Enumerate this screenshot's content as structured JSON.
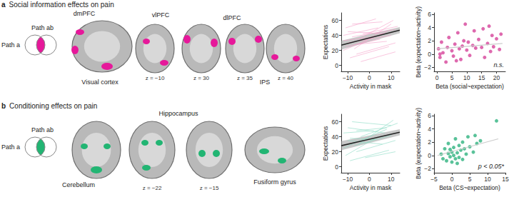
{
  "figure": {
    "panels": [
      {
        "letter": "a",
        "title": "Social information effects on pain",
        "path_labels": [
          "Path a",
          "Path ab"
        ],
        "color": "#e6189a",
        "region_labels": [
          "dmPFC",
          "vlPFC",
          "dlPFC",
          "Visual cortex",
          "IPS"
        ],
        "slice_labels": [
          "z = −10",
          "z = 30",
          "z = 35",
          "z = 40"
        ]
      },
      {
        "letter": "b",
        "title": "Conditioning effects on pain",
        "path_labels": [
          "Path a",
          "Path ab"
        ],
        "color": "#22b573",
        "region_labels": [
          "Hippocampus",
          "Cerebellum",
          "Fusiform gyrus"
        ],
        "slice_labels": [
          "z = −22",
          "z = −15"
        ]
      }
    ]
  },
  "chart_data": [
    {
      "type": "line",
      "x_label": "Activity in mask",
      "y_label": "Expectations",
      "xlim": [
        -13,
        14
      ],
      "ylim": [
        -8,
        70
      ],
      "xticks": [
        {
          "value": -10,
          "label": "−10"
        },
        0,
        10
      ],
      "yticks": [
        0,
        20,
        40,
        60
      ],
      "grid": false,
      "color": "#f5a3cb",
      "lines": [
        [
          [
            -12,
            20
          ],
          [
            8,
            45
          ]
        ],
        [
          [
            -10,
            30
          ],
          [
            10,
            40
          ]
        ],
        [
          [
            -8,
            55
          ],
          [
            6,
            58
          ]
        ],
        [
          [
            -11,
            25
          ],
          [
            5,
            35
          ]
        ],
        [
          [
            -6,
            15
          ],
          [
            12,
            30
          ]
        ],
        [
          [
            -12,
            40
          ],
          [
            4,
            50
          ]
        ],
        [
          [
            -9,
            10
          ],
          [
            9,
            25
          ]
        ],
        [
          [
            -5,
            35
          ],
          [
            11,
            60
          ]
        ],
        [
          [
            -10,
            45
          ],
          [
            7,
            42
          ]
        ],
        [
          [
            -7,
            22
          ],
          [
            10,
            55
          ]
        ],
        [
          [
            -12,
            33
          ],
          [
            2,
            38
          ]
        ],
        [
          [
            -4,
            5
          ],
          [
            12,
            18
          ]
        ],
        [
          [
            -8,
            38
          ],
          [
            12,
            48
          ]
        ],
        [
          [
            -11,
            50
          ],
          [
            3,
            62
          ]
        ],
        [
          [
            -6,
            28
          ],
          [
            8,
            32
          ]
        ],
        [
          [
            -3,
            42
          ],
          [
            13,
            52
          ]
        ]
      ],
      "fit": {
        "color": "#222222",
        "band_color": "#9a9a9a",
        "x": [
          -13,
          14
        ],
        "y": [
          27,
          47
        ],
        "ci_lower": [
          21,
          43
        ],
        "ci_upper": [
          33,
          51
        ]
      }
    },
    {
      "type": "scatter",
      "x_label": "Beta (social~expectation)",
      "y_label": "Beta (expectation~activity)",
      "xlim": [
        -1,
        23
      ],
      "ylim": [
        -2.6,
        6.2
      ],
      "xticks": [
        0,
        5,
        10,
        15,
        20
      ],
      "yticks": [
        {
          "value": -2,
          "label": "−2"
        },
        0,
        2,
        4,
        6
      ],
      "grid": false,
      "color": "#d6449a",
      "points": [
        [
          0.5,
          0.8
        ],
        [
          1,
          -0.5
        ],
        [
          1.5,
          1.8
        ],
        [
          2,
          0.2
        ],
        [
          3,
          -1.2
        ],
        [
          3.5,
          1
        ],
        [
          4,
          2.5
        ],
        [
          5,
          0.5
        ],
        [
          5.5,
          -0.3
        ],
        [
          6,
          1.5
        ],
        [
          7,
          3.2
        ],
        [
          7.5,
          0.8
        ],
        [
          8,
          -0.8
        ],
        [
          8.5,
          1.2
        ],
        [
          9,
          2
        ],
        [
          9.5,
          4.5
        ],
        [
          10,
          0.6
        ],
        [
          10.5,
          1.8
        ],
        [
          11,
          -0.2
        ],
        [
          12,
          1.3
        ],
        [
          12.5,
          3.5
        ],
        [
          13,
          0.9
        ],
        [
          14,
          2.2
        ],
        [
          15,
          1
        ],
        [
          15.5,
          3.8
        ],
        [
          16,
          -0.5
        ],
        [
          17,
          1.6
        ],
        [
          17.5,
          4.2
        ],
        [
          18,
          0.4
        ],
        [
          18.5,
          2.8
        ],
        [
          19,
          1.1
        ],
        [
          20,
          2.3
        ],
        [
          21,
          0.7
        ],
        [
          21.5,
          3
        ],
        [
          1,
          0
        ],
        [
          6.5,
          -1
        ]
      ],
      "fit": {
        "color": "#cccccc",
        "x": [
          0,
          22
        ],
        "y": [
          0.8,
          1.6
        ]
      },
      "annotation": "n.s."
    },
    {
      "type": "line",
      "x_label": "Activity in mask",
      "y_label": "Expectations",
      "xlim": [
        -13,
        14
      ],
      "ylim": [
        -8,
        70
      ],
      "xticks": [
        {
          "value": -10,
          "label": "−10"
        },
        0,
        10
      ],
      "yticks": [
        0,
        20,
        40,
        60
      ],
      "grid": false,
      "color": "#8fdcc6",
      "lines": [
        [
          [
            -12,
            25
          ],
          [
            8,
            50
          ]
        ],
        [
          [
            -10,
            35
          ],
          [
            6,
            30
          ]
        ],
        [
          [
            -8,
            60
          ],
          [
            10,
            55
          ]
        ],
        [
          [
            -11,
            15
          ],
          [
            4,
            40
          ]
        ],
        [
          [
            -6,
            20
          ],
          [
            12,
            35
          ]
        ],
        [
          [
            -12,
            45
          ],
          [
            2,
            48
          ]
        ],
        [
          [
            -9,
            8
          ],
          [
            9,
            22
          ]
        ],
        [
          [
            -5,
            30
          ],
          [
            11,
            62
          ]
        ],
        [
          [
            -10,
            52
          ],
          [
            7,
            45
          ]
        ],
        [
          [
            -7,
            28
          ],
          [
            10,
            42
          ]
        ],
        [
          [
            -4,
            40
          ],
          [
            13,
            58
          ]
        ],
        [
          [
            -2,
            12
          ],
          [
            12,
            20
          ]
        ],
        [
          [
            -9,
            38
          ],
          [
            3,
            36
          ]
        ],
        [
          [
            -6,
            48
          ],
          [
            8,
            52
          ]
        ]
      ],
      "fit": {
        "color": "#222222",
        "band_color": "#9a9a9a",
        "x": [
          -13,
          14
        ],
        "y": [
          28,
          46
        ],
        "ci_lower": [
          22,
          42
        ],
        "ci_upper": [
          34,
          50
        ]
      }
    },
    {
      "type": "scatter",
      "x_label": "Beta (CS~expectation)",
      "y_label": "Beta (expectation~activity)",
      "xlim": [
        -5,
        15
      ],
      "ylim": [
        -2.6,
        6.2
      ],
      "xticks": [
        {
          "value": -5,
          "label": "−5"
        },
        0,
        5,
        10,
        15
      ],
      "yticks": [
        {
          "value": -2,
          "label": "−2"
        },
        0,
        2,
        4,
        6
      ],
      "grid": false,
      "color": "#2fb37f",
      "points": [
        [
          -3,
          0.2
        ],
        [
          -2.5,
          -0.5
        ],
        [
          -2,
          1
        ],
        [
          -1.5,
          -0.8
        ],
        [
          -1,
          0.3
        ],
        [
          -1,
          1.8
        ],
        [
          -0.5,
          -0.2
        ],
        [
          0,
          0.5
        ],
        [
          0,
          -1
        ],
        [
          0.5,
          1.2
        ],
        [
          0.5,
          0
        ],
        [
          1,
          -0.5
        ],
        [
          1,
          2.5
        ],
        [
          1.5,
          0.4
        ],
        [
          2,
          1.5
        ],
        [
          2,
          -0.3
        ],
        [
          2.5,
          0.8
        ],
        [
          3,
          2
        ],
        [
          3,
          -0.6
        ],
        [
          3.5,
          1
        ],
        [
          4,
          0.2
        ],
        [
          4.5,
          2.8
        ],
        [
          5,
          1.3
        ],
        [
          6,
          0.5
        ],
        [
          6.5,
          3
        ],
        [
          7,
          1.8
        ],
        [
          8,
          2.2
        ],
        [
          12.5,
          5.2
        ],
        [
          -0.5,
          0.9
        ],
        [
          1.5,
          -1.2
        ]
      ],
      "fit": {
        "color": "#cccccc",
        "x": [
          -4,
          13
        ],
        "y": [
          0,
          2.5
        ]
      },
      "annotation": "p < 0.05*"
    }
  ]
}
